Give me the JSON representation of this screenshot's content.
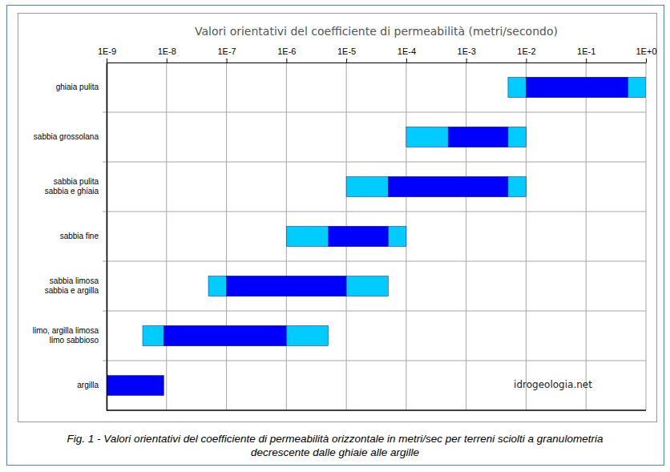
{
  "chart_data": {
    "type": "bar",
    "orientation": "horizontal",
    "log": "x",
    "grid": true,
    "title": "Valori orientativi del coefficiente di permeabilità (metri/secondo)",
    "categories": [
      "ghiaia pulita",
      "sabbia grossolana",
      "sabbia pulita\nsabbia e ghiaia",
      "sabbia fine",
      "sabbia limosa\nsabbia e argilla",
      "limo, argilla limosa\nlimo sabbioso",
      "argilla"
    ],
    "series": [
      {
        "color": "#00ccff",
        "values": [
          [
            0.005,
            1
          ],
          [
            0.0001,
            0.01
          ],
          [
            1e-05,
            0.01
          ],
          [
            1e-06,
            0.0001
          ],
          [
            5e-08,
            5e-05
          ],
          [
            4e-09,
            5e-06
          ],
          null
        ]
      },
      {
        "color": "#0000ff",
        "values": [
          [
            0.01,
            0.5
          ],
          [
            0.0005,
            0.005
          ],
          [
            5e-05,
            0.005
          ],
          [
            5e-06,
            5e-05
          ],
          [
            1e-07,
            1e-05
          ],
          [
            9e-09,
            1e-06
          ],
          [
            1e-09,
            9e-09
          ]
        ]
      }
    ],
    "xlim": [
      1e-09,
      1
    ],
    "xticks": [
      {
        "value": 1e-09,
        "label": "1E-9"
      },
      {
        "value": 1e-08,
        "label": "1E-8"
      },
      {
        "value": 1e-07,
        "label": "1E-7"
      },
      {
        "value": 1e-06,
        "label": "1E-6"
      },
      {
        "value": 1e-05,
        "label": "1E-5"
      },
      {
        "value": 0.0001,
        "label": "1E-4"
      },
      {
        "value": 0.001,
        "label": "1E-3"
      },
      {
        "value": 0.01,
        "label": "1E-2"
      },
      {
        "value": 0.1,
        "label": "1E-1"
      },
      {
        "value": 1,
        "label": "1E+0"
      }
    ],
    "annotation": "idrogeologia.net",
    "caption": [
      "Fig. 1 - Valori orientativi del coefficiente di permeabilità orizzontale in metri/sec per terreni sciolti a granulometria",
      "decrescente dalle ghiaie alle argille"
    ]
  }
}
